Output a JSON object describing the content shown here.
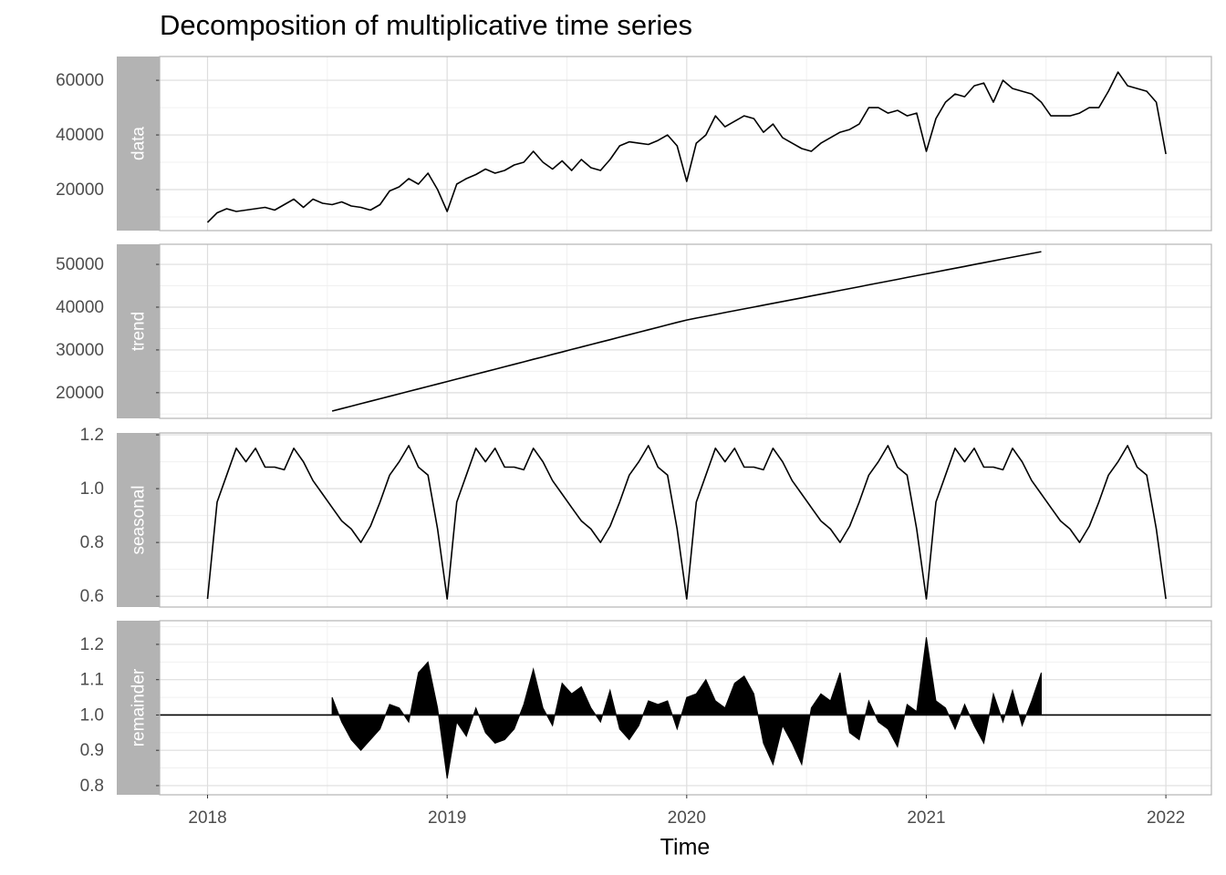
{
  "chart_data": {
    "type": "line",
    "title": "Decomposition of multiplicative time series",
    "xlabel": "Time",
    "color": "#000000",
    "grid": true,
    "xlim": [
      2017.8,
      2022.19
    ],
    "xticks": [
      2018,
      2019,
      2020,
      2021,
      2022
    ],
    "x": [
      2018.0,
      2018.04,
      2018.08,
      2018.12,
      2018.16,
      2018.2,
      2018.24,
      2018.28,
      2018.32,
      2018.36,
      2018.4,
      2018.44,
      2018.48,
      2018.52,
      2018.56,
      2018.6,
      2018.64,
      2018.68,
      2018.72,
      2018.76,
      2018.8,
      2018.84,
      2018.88,
      2018.92,
      2018.96,
      2019.0,
      2019.04,
      2019.08,
      2019.12,
      2019.16,
      2019.2,
      2019.24,
      2019.28,
      2019.32,
      2019.36,
      2019.4,
      2019.44,
      2019.48,
      2019.52,
      2019.56,
      2019.6,
      2019.64,
      2019.68,
      2019.72,
      2019.76,
      2019.8,
      2019.84,
      2019.88,
      2019.92,
      2019.96,
      2020.0,
      2020.04,
      2020.08,
      2020.12,
      2020.16,
      2020.2,
      2020.24,
      2020.28,
      2020.32,
      2020.36,
      2020.4,
      2020.44,
      2020.48,
      2020.52,
      2020.56,
      2020.6,
      2020.64,
      2020.68,
      2020.72,
      2020.76,
      2020.8,
      2020.84,
      2020.88,
      2020.92,
      2020.96,
      2021.0,
      2021.04,
      2021.08,
      2021.12,
      2021.16,
      2021.2,
      2021.24,
      2021.28,
      2021.32,
      2021.36,
      2021.4,
      2021.44,
      2021.48,
      2021.52,
      2021.56,
      2021.6,
      2021.64,
      2021.68,
      2021.72,
      2021.76,
      2021.8,
      2021.84,
      2021.88,
      2021.92,
      2021.96,
      2022.0
    ],
    "facets": [
      {
        "label": "data",
        "type": "line",
        "ylim": [
          5000,
          68700
        ],
        "yticks": [
          20000,
          40000,
          60000
        ],
        "values": [
          8000,
          11500,
          13000,
          12000,
          12500,
          13000,
          13500,
          12500,
          14500,
          16500,
          13500,
          16500,
          15000,
          14500,
          15500,
          14000,
          13500,
          12500,
          14500,
          19500,
          21000,
          24000,
          22000,
          26000,
          20000,
          12000,
          22000,
          24000,
          25500,
          27500,
          26000,
          27000,
          29000,
          30000,
          34000,
          30000,
          27500,
          30500,
          27000,
          31000,
          28000,
          27000,
          31000,
          36000,
          37500,
          37000,
          36500,
          38000,
          40000,
          36000,
          23000,
          37000,
          40000,
          47000,
          43000,
          45000,
          47000,
          46000,
          41000,
          44000,
          39000,
          37000,
          35000,
          34000,
          37000,
          39000,
          41000,
          42000,
          44000,
          50000,
          50000,
          48000,
          49000,
          47000,
          48000,
          34000,
          46000,
          52000,
          55000,
          54000,
          58000,
          59000,
          52000,
          60000,
          57000,
          56000,
          55000,
          52000,
          47000,
          47000,
          47000,
          48000,
          50000,
          50000,
          56000,
          63000,
          58000,
          57000,
          56000,
          52000,
          33000
        ]
      },
      {
        "label": "trend",
        "type": "line",
        "ylim": [
          14000,
          54700
        ],
        "yticks": [
          20000,
          30000,
          40000,
          50000
        ],
        "values": [
          null,
          null,
          null,
          null,
          null,
          null,
          null,
          null,
          null,
          null,
          null,
          null,
          null,
          15700,
          16280,
          16850,
          17430,
          18000,
          18580,
          19160,
          19730,
          20310,
          20880,
          21460,
          22040,
          22610,
          23190,
          23760,
          24340,
          24920,
          25490,
          26070,
          26640,
          27220,
          27800,
          28370,
          28950,
          29520,
          30100,
          30680,
          31250,
          31830,
          32400,
          32980,
          33560,
          34130,
          34710,
          35280,
          35860,
          36440,
          37000,
          37430,
          37860,
          38300,
          38730,
          39160,
          39590,
          40020,
          40460,
          40890,
          41320,
          41750,
          42180,
          42620,
          43050,
          43480,
          43910,
          44340,
          44780,
          45210,
          45640,
          46070,
          46500,
          46940,
          47370,
          47800,
          48230,
          48660,
          49100,
          49530,
          49960,
          50390,
          50820,
          51260,
          51690,
          52120,
          52550,
          52980,
          null,
          null,
          null,
          null,
          null,
          null,
          null,
          null,
          null,
          null,
          null,
          null,
          null
        ]
      },
      {
        "label": "seasonal",
        "type": "line",
        "ylim": [
          0.56,
          1.207
        ],
        "yticks": [
          0.6,
          0.8,
          {
            "value": 1,
            "label": "1.0"
          },
          1.2
        ],
        "values": [
          0.59,
          0.95,
          1.05,
          1.15,
          1.1,
          1.15,
          1.08,
          1.08,
          1.07,
          1.15,
          1.1,
          1.03,
          0.98,
          0.93,
          0.88,
          0.85,
          0.8,
          0.86,
          0.95,
          1.05,
          1.1,
          1.16,
          1.08,
          1.05,
          0.85,
          0.59,
          0.95,
          1.05,
          1.15,
          1.1,
          1.15,
          1.08,
          1.08,
          1.07,
          1.15,
          1.1,
          1.03,
          0.98,
          0.93,
          0.88,
          0.85,
          0.8,
          0.86,
          0.95,
          1.05,
          1.1,
          1.16,
          1.08,
          1.05,
          0.85,
          0.59,
          0.95,
          1.05,
          1.15,
          1.1,
          1.15,
          1.08,
          1.08,
          1.07,
          1.15,
          1.1,
          1.03,
          0.98,
          0.93,
          0.88,
          0.85,
          0.8,
          0.86,
          0.95,
          1.05,
          1.1,
          1.16,
          1.08,
          1.05,
          0.85,
          0.59,
          0.95,
          1.05,
          1.15,
          1.1,
          1.15,
          1.08,
          1.08,
          1.07,
          1.15,
          1.1,
          1.03,
          0.98,
          0.93,
          0.88,
          0.85,
          0.8,
          0.86,
          0.95,
          1.05,
          1.1,
          1.16,
          1.08,
          1.05,
          0.85,
          0.59
        ]
      },
      {
        "label": "remainder",
        "type": "area",
        "baseline": 1,
        "ylim": [
          0.774,
          1.267
        ],
        "yticks": [
          0.8,
          0.9,
          {
            "value": 1,
            "label": "1.0"
          },
          1.1,
          1.2
        ],
        "values": [
          null,
          null,
          null,
          null,
          null,
          null,
          null,
          null,
          null,
          null,
          null,
          null,
          null,
          1.05,
          0.98,
          0.93,
          0.9,
          0.93,
          0.96,
          1.03,
          1.02,
          0.98,
          1.12,
          1.15,
          1.02,
          0.82,
          0.98,
          0.94,
          1.02,
          0.95,
          0.92,
          0.93,
          0.96,
          1.03,
          1.13,
          1.02,
          0.97,
          1.09,
          1.06,
          1.08,
          1.02,
          0.98,
          1.07,
          0.96,
          0.93,
          0.97,
          1.04,
          1.03,
          1.04,
          0.96,
          1.05,
          1.06,
          1.1,
          1.04,
          1.02,
          1.09,
          1.11,
          1.06,
          0.92,
          0.86,
          0.97,
          0.92,
          0.86,
          1.02,
          1.06,
          1.04,
          1.12,
          0.95,
          0.93,
          1.04,
          0.98,
          0.96,
          0.91,
          1.03,
          1.01,
          1.22,
          1.04,
          1.02,
          0.96,
          1.03,
          0.97,
          0.92,
          1.06,
          0.98,
          1.07,
          0.97,
          1.04,
          1.12,
          null,
          null,
          null,
          null,
          null,
          null,
          null,
          null,
          null,
          null,
          null,
          null,
          null
        ]
      }
    ]
  }
}
